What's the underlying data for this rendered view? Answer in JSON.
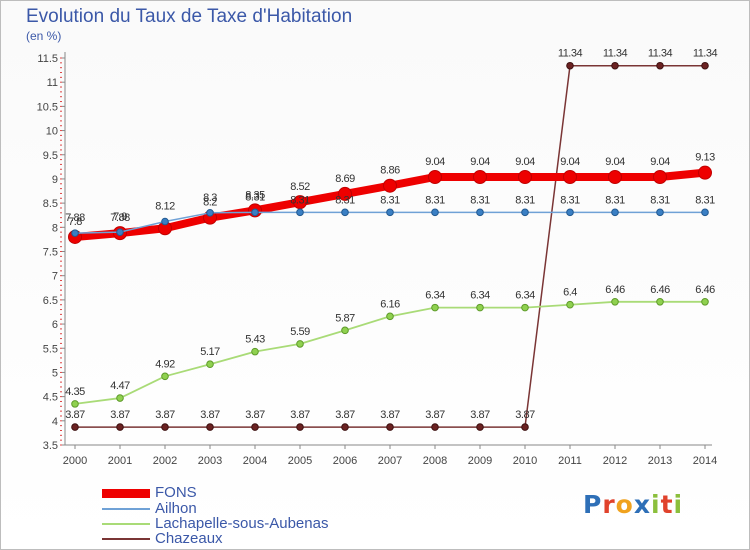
{
  "title": "Evolution du Taux de Taxe d'Habitation",
  "unit_label": "(en %)",
  "logo": {
    "text": "Proxiti",
    "letters": [
      {
        "ch": "P",
        "color": "#2e6fb7"
      },
      {
        "ch": "r",
        "color": "#e0422c"
      },
      {
        "ch": "o",
        "color": "#f0a21e"
      },
      {
        "ch": "x",
        "color": "#2e6fb7"
      },
      {
        "ch": "i",
        "color": "#8bbf3c"
      },
      {
        "ch": "t",
        "color": "#e0422c"
      },
      {
        "ch": "i",
        "color": "#8bbf3c"
      }
    ]
  },
  "chart_data": {
    "type": "line",
    "title": "Evolution du Taux de Taxe d'Habitation",
    "ylabel": "(en %)",
    "x": [
      "2000",
      "2001",
      "2002",
      "2003",
      "2004",
      "2005",
      "2006",
      "2007",
      "2008",
      "2009",
      "2010",
      "2011",
      "2012",
      "2013",
      "2014"
    ],
    "ylim": [
      3.5,
      11.5
    ],
    "yticks": [
      "3.5",
      "4",
      "4.5",
      "5",
      "5.5",
      "6",
      "6.5",
      "7",
      "7.5",
      "8",
      "8.5",
      "9",
      "9.5",
      "10",
      "10.5",
      "11",
      "11.5"
    ],
    "grid": false,
    "legend_position": "bottom-left",
    "series": [
      {
        "name": "FONS",
        "color": "#ee0000",
        "values": [
          7.8,
          7.88,
          7.98,
          8.2,
          8.35,
          8.52,
          8.69,
          8.86,
          9.04,
          9.04,
          9.04,
          9.04,
          9.04,
          9.04,
          9.13
        ],
        "labels": [
          "7.8",
          "7.88",
          "",
          "8.2",
          "8.35",
          "8.52",
          "8.69",
          "8.86",
          "9.04",
          "9.04",
          "9.04",
          "9.04",
          "9.04",
          "9.04",
          "9.13"
        ]
      },
      {
        "name": "Ailhon",
        "color": "#6fa1d6",
        "values": [
          7.88,
          7.9,
          8.12,
          8.3,
          8.31,
          8.31,
          8.31,
          8.31,
          8.31,
          8.31,
          8.31,
          8.31,
          8.31,
          8.31,
          8.31
        ],
        "labels": [
          "7.88",
          "7.9",
          "8.12",
          "8.3",
          "8.31",
          "8.31",
          "8.31",
          "8.31",
          "8.31",
          "8.31",
          "8.31",
          "8.31",
          "8.31",
          "8.31",
          "8.31"
        ]
      },
      {
        "name": "Lachapelle-sous-Aubenas",
        "color": "#a9db77",
        "values": [
          4.35,
          4.47,
          4.92,
          5.17,
          5.43,
          5.59,
          5.87,
          6.16,
          6.34,
          6.34,
          6.34,
          6.4,
          6.46,
          6.46,
          6.46
        ],
        "labels": [
          "4.35",
          "4.47",
          "4.92",
          "5.17",
          "5.43",
          "5.59",
          "5.87",
          "6.16",
          "6.34",
          "6.34",
          "6.34",
          "6.4",
          "6.46",
          "6.46",
          "6.46"
        ]
      },
      {
        "name": "Chazeaux",
        "color": "#7a3535",
        "values": [
          3.87,
          3.87,
          3.87,
          3.87,
          3.87,
          3.87,
          3.87,
          3.87,
          3.87,
          3.87,
          3.87,
          11.34,
          11.34,
          11.34,
          11.34
        ],
        "labels": [
          "3.87",
          "3.87",
          "3.87",
          "3.87",
          "3.87",
          "3.87",
          "3.87",
          "3.87",
          "3.87",
          "3.87",
          "3.87",
          "11.34",
          "11.34",
          "11.34",
          "11.34"
        ]
      }
    ]
  }
}
